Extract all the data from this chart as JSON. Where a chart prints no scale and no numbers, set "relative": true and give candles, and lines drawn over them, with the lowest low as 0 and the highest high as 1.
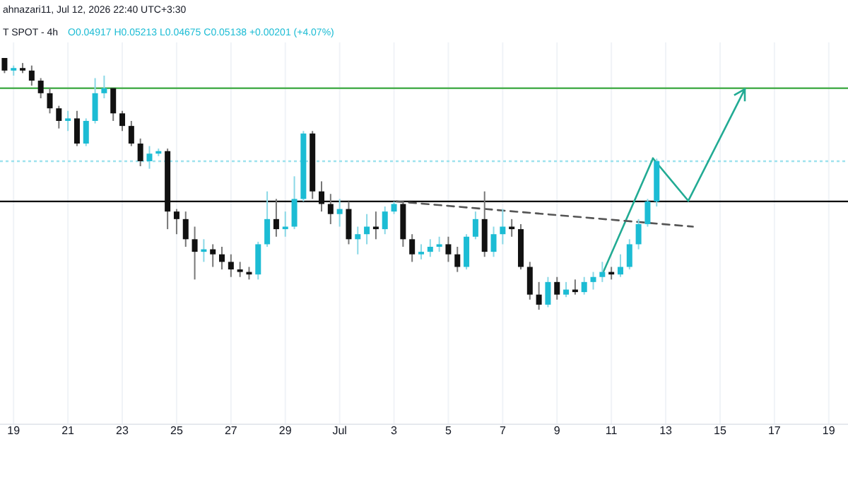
{
  "chart_data": {
    "type": "candlestick",
    "relative": true,
    "title": "T SPOT - 4h",
    "subtitle": "O0.04917 H0.05213 L0.04675 C0.05138 +0.00201 (+4.07%)",
    "annotations": [
      "ahnazari11, Jul 12, 2026 22:40 UTC+3:30"
    ],
    "x": [
      "2026-06-18T16:00",
      "2026-06-19T00:00",
      "2026-06-19T08:00",
      "2026-06-19T16:00",
      "2026-06-20T00:00",
      "2026-06-20T08:00",
      "2026-06-20T16:00",
      "2026-06-21T00:00",
      "2026-06-21T08:00",
      "2026-06-21T16:00",
      "2026-06-22T00:00",
      "2026-06-22T08:00",
      "2026-06-22T16:00",
      "2026-06-23T00:00",
      "2026-06-23T08:00",
      "2026-06-23T16:00",
      "2026-06-24T00:00",
      "2026-06-24T08:00",
      "2026-06-24T16:00",
      "2026-06-25T00:00",
      "2026-06-25T08:00",
      "2026-06-25T16:00",
      "2026-06-26T00:00",
      "2026-06-26T08:00",
      "2026-06-26T16:00",
      "2026-06-27T00:00",
      "2026-06-27T08:00",
      "2026-06-27T16:00",
      "2026-06-28T00:00",
      "2026-06-28T08:00",
      "2026-06-28T16:00",
      "2026-06-29T00:00",
      "2026-06-29T08:00",
      "2026-06-29T16:00",
      "2026-06-30T00:00",
      "2026-06-30T08:00",
      "2026-06-30T16:00",
      "2026-07-01T00:00",
      "2026-07-01T08:00",
      "2026-07-01T16:00",
      "2026-07-02T00:00",
      "2026-07-02T08:00",
      "2026-07-02T16:00",
      "2026-07-03T00:00",
      "2026-07-03T08:00",
      "2026-07-03T16:00",
      "2026-07-04T00:00",
      "2026-07-04T08:00",
      "2026-07-04T16:00",
      "2026-07-05T00:00",
      "2026-07-05T08:00",
      "2026-07-05T16:00",
      "2026-07-06T00:00",
      "2026-07-06T08:00",
      "2026-07-06T16:00",
      "2026-07-07T00:00",
      "2026-07-07T08:00",
      "2026-07-07T16:00",
      "2026-07-08T00:00",
      "2026-07-08T08:00",
      "2026-07-08T16:00",
      "2026-07-09T00:00",
      "2026-07-09T08:00",
      "2026-07-09T16:00",
      "2026-07-10T00:00",
      "2026-07-10T08:00",
      "2026-07-10T16:00",
      "2026-07-11T00:00",
      "2026-07-11T08:00",
      "2026-07-11T16:00",
      "2026-07-12T00:00",
      "2026-07-12T08:00",
      "2026-07-12T16:00"
    ],
    "ohlc": [
      [
        1.0,
        1.0,
        0.94,
        0.95
      ],
      [
        0.95,
        0.97,
        0.93,
        0.96
      ],
      [
        0.96,
        0.98,
        0.94,
        0.95
      ],
      [
        0.95,
        0.97,
        0.89,
        0.91
      ],
      [
        0.91,
        0.92,
        0.84,
        0.86
      ],
      [
        0.86,
        0.88,
        0.78,
        0.8
      ],
      [
        0.8,
        0.81,
        0.72,
        0.75
      ],
      [
        0.75,
        0.79,
        0.71,
        0.76
      ],
      [
        0.76,
        0.79,
        0.65,
        0.66
      ],
      [
        0.66,
        0.76,
        0.65,
        0.75
      ],
      [
        0.75,
        0.92,
        0.74,
        0.86
      ],
      [
        0.86,
        0.93,
        0.84,
        0.88
      ],
      [
        0.88,
        0.88,
        0.75,
        0.78
      ],
      [
        0.78,
        0.79,
        0.71,
        0.73
      ],
      [
        0.73,
        0.75,
        0.65,
        0.66
      ],
      [
        0.66,
        0.68,
        0.57,
        0.59
      ],
      [
        0.59,
        0.65,
        0.56,
        0.62
      ],
      [
        0.62,
        0.64,
        0.61,
        0.63
      ],
      [
        0.63,
        0.64,
        0.32,
        0.39
      ],
      [
        0.39,
        0.4,
        0.3,
        0.36
      ],
      [
        0.36,
        0.39,
        0.25,
        0.28
      ],
      [
        0.28,
        0.33,
        0.12,
        0.23
      ],
      [
        0.23,
        0.28,
        0.19,
        0.24
      ],
      [
        0.24,
        0.26,
        0.17,
        0.22
      ],
      [
        0.22,
        0.25,
        0.16,
        0.19
      ],
      [
        0.19,
        0.22,
        0.13,
        0.16
      ],
      [
        0.16,
        0.19,
        0.13,
        0.15
      ],
      [
        0.15,
        0.17,
        0.12,
        0.14
      ],
      [
        0.14,
        0.27,
        0.12,
        0.26
      ],
      [
        0.26,
        0.47,
        0.25,
        0.36
      ],
      [
        0.36,
        0.44,
        0.29,
        0.32
      ],
      [
        0.32,
        0.39,
        0.29,
        0.33
      ],
      [
        0.33,
        0.53,
        0.32,
        0.44
      ],
      [
        0.44,
        0.71,
        0.43,
        0.7
      ],
      [
        0.7,
        0.71,
        0.44,
        0.47
      ],
      [
        0.47,
        0.51,
        0.39,
        0.42
      ],
      [
        0.42,
        0.46,
        0.34,
        0.38
      ],
      [
        0.38,
        0.44,
        0.33,
        0.4
      ],
      [
        0.4,
        0.43,
        0.26,
        0.28
      ],
      [
        0.28,
        0.33,
        0.22,
        0.3
      ],
      [
        0.3,
        0.38,
        0.26,
        0.33
      ],
      [
        0.33,
        0.39,
        0.28,
        0.32
      ],
      [
        0.32,
        0.41,
        0.3,
        0.39
      ],
      [
        0.39,
        0.43,
        0.38,
        0.42
      ],
      [
        0.42,
        0.43,
        0.25,
        0.28
      ],
      [
        0.28,
        0.3,
        0.19,
        0.22
      ],
      [
        0.22,
        0.26,
        0.2,
        0.23
      ],
      [
        0.23,
        0.28,
        0.21,
        0.25
      ],
      [
        0.25,
        0.29,
        0.23,
        0.26
      ],
      [
        0.26,
        0.29,
        0.19,
        0.22
      ],
      [
        0.22,
        0.25,
        0.15,
        0.17
      ],
      [
        0.17,
        0.3,
        0.16,
        0.29
      ],
      [
        0.29,
        0.39,
        0.28,
        0.36
      ],
      [
        0.36,
        0.47,
        0.21,
        0.23
      ],
      [
        0.23,
        0.33,
        0.21,
        0.3
      ],
      [
        0.3,
        0.4,
        0.26,
        0.33
      ],
      [
        0.33,
        0.36,
        0.29,
        0.32
      ],
      [
        0.32,
        0.34,
        0.16,
        0.17
      ],
      [
        0.17,
        0.19,
        0.04,
        0.06
      ],
      [
        0.06,
        0.11,
        0.0,
        0.02
      ],
      [
        0.02,
        0.13,
        0.01,
        0.11
      ],
      [
        0.11,
        0.13,
        0.04,
        0.06
      ],
      [
        0.06,
        0.11,
        0.05,
        0.08
      ],
      [
        0.08,
        0.12,
        0.06,
        0.07
      ],
      [
        0.07,
        0.13,
        0.06,
        0.11
      ],
      [
        0.11,
        0.15,
        0.08,
        0.13
      ],
      [
        0.13,
        0.19,
        0.11,
        0.15
      ],
      [
        0.15,
        0.17,
        0.12,
        0.14
      ],
      [
        0.14,
        0.22,
        0.13,
        0.17
      ],
      [
        0.17,
        0.28,
        0.16,
        0.26
      ],
      [
        0.26,
        0.36,
        0.24,
        0.34
      ],
      [
        0.34,
        0.44,
        0.33,
        0.43
      ],
      [
        0.43,
        0.6,
        0.41,
        0.59
      ]
    ],
    "series": [
      {
        "type": "line",
        "x": [
          "2026-07-03T02:00",
          "2026-07-14T00:00"
        ],
        "values": [
          0.43,
          0.33
        ],
        "color": "#555555",
        "line_style": "dashed"
      }
    ],
    "ref_lines": [
      {
        "axis": "y",
        "value": 0.88,
        "color": "#4caf50",
        "line_style": "solid"
      },
      {
        "axis": "y",
        "value": 0.43,
        "color": "#000000",
        "line_style": "solid"
      },
      {
        "axis": "y",
        "value": 0.59,
        "color": "#9ee3ee",
        "line_style": "dotted"
      }
    ],
    "xlim": [
      "2026-06-18T12:00",
      "2026-07-19T17:00"
    ],
    "xticks": [
      {
        "value": "2026-06-19",
        "label": "19"
      },
      {
        "value": "2026-06-21",
        "label": "21"
      },
      {
        "value": "2026-06-23",
        "label": "23"
      },
      {
        "value": "2026-06-25",
        "label": "25"
      },
      {
        "value": "2026-06-27",
        "label": "27"
      },
      {
        "value": "2026-06-29",
        "label": "29"
      },
      {
        "value": "2026-07-01",
        "label": "Jul"
      },
      {
        "value": "2026-07-03",
        "label": "3"
      },
      {
        "value": "2026-07-05",
        "label": "5"
      },
      {
        "value": "2026-07-07",
        "label": "7"
      },
      {
        "value": "2026-07-09",
        "label": "9"
      },
      {
        "value": "2026-07-11",
        "label": "11"
      },
      {
        "value": "2026-07-13",
        "label": "13"
      },
      {
        "value": "2026-07-15",
        "label": "15"
      },
      {
        "value": "2026-07-17",
        "label": "17"
      },
      {
        "value": "2026-07-19",
        "label": "19"
      }
    ],
    "grid": "x"
  }
}
